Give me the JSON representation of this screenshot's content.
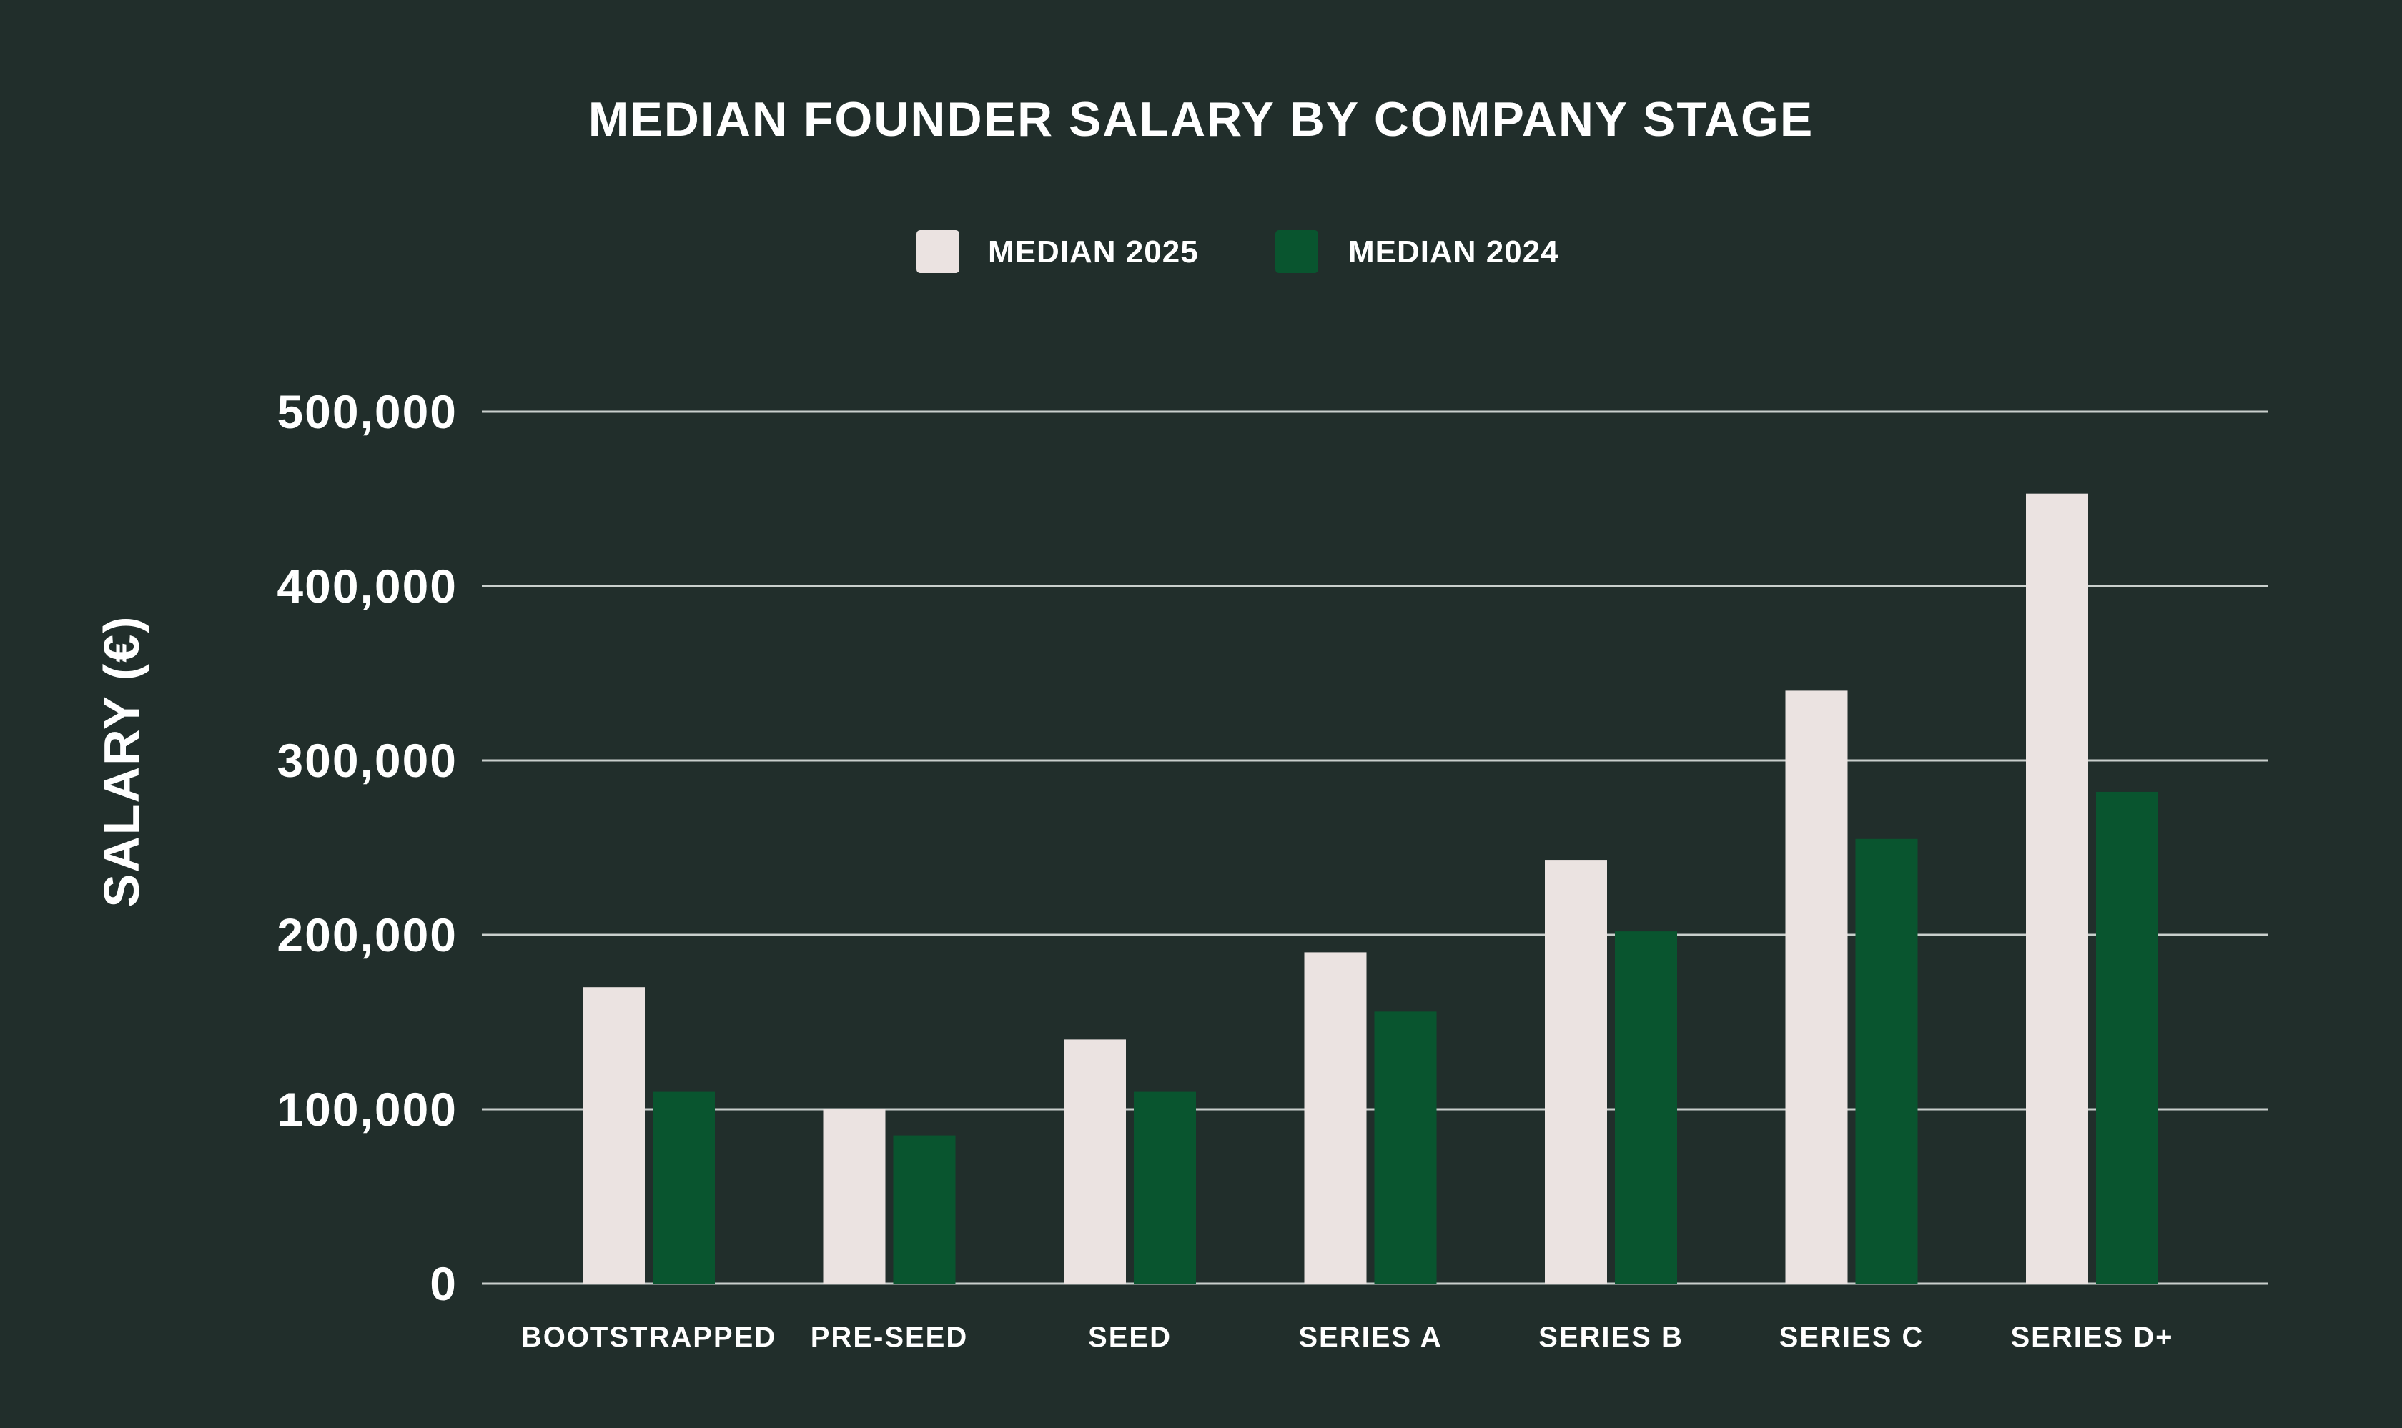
{
  "chart_data": {
    "type": "bar",
    "title": "MEDIAN FOUNDER SALARY BY COMPANY STAGE",
    "xlabel": "",
    "ylabel": "SALARY (€)",
    "ylim": [
      0,
      520000
    ],
    "yticks": [
      0,
      100000,
      200000,
      300000,
      400000,
      500000
    ],
    "ytick_labels": [
      "0",
      "100,000",
      "200,000",
      "300,000",
      "400,000",
      "500,000"
    ],
    "grid": true,
    "legend_position": "top-center",
    "categories": [
      "BOOTSTRAPPED",
      "PRE-SEED",
      "SEED",
      "SERIES A",
      "SERIES B",
      "SERIES C",
      "SERIES D+"
    ],
    "series": [
      {
        "name": "MEDIAN 2025",
        "color": "#ebe3e1",
        "values": [
          170000,
          100000,
          140000,
          190000,
          243000,
          340000,
          453000
        ]
      },
      {
        "name": "MEDIAN 2024",
        "color": "#09552f",
        "values": [
          110000,
          85000,
          110000,
          156000,
          202000,
          255000,
          282000
        ]
      }
    ]
  }
}
